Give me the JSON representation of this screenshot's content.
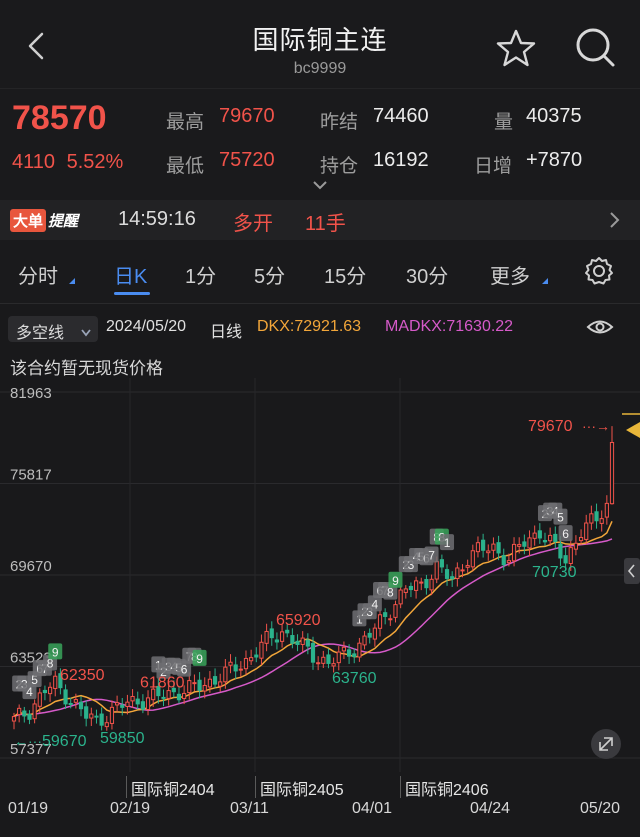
{
  "header": {
    "title": "国际铜主连",
    "code": "bc9999"
  },
  "quote": {
    "price": "78570",
    "change": "4110",
    "change_pct": "5.52%",
    "high_label": "最高",
    "high": "79670",
    "low_label": "最低",
    "low": "75720",
    "prev_settle_label": "昨结",
    "prev_settle": "74460",
    "volume_label": "量",
    "volume": "40375",
    "open_interest_label": "持仓",
    "open_interest": "16192",
    "daily_inc_label": "日增",
    "daily_inc": "+7870"
  },
  "alert": {
    "badge_a": "大单",
    "badge_b": "提醒",
    "time": "14:59:16",
    "action": "多开",
    "qty": "11手"
  },
  "tabs": {
    "intraday": "分时",
    "daily": "日K",
    "m1": "1分",
    "m5": "5分",
    "m15": "15分",
    "m30": "30分",
    "more": "更多"
  },
  "chart_head": {
    "indicator": "多空线",
    "date": "2024/05/20",
    "period": "日线",
    "dkx": "DKX:72921.63",
    "madkx": "MADKX:71630.22",
    "note": "该合约暂无现货价格"
  },
  "chart_data": {
    "type": "candlestick",
    "y_ticks": [
      "81963",
      "75817",
      "69670",
      "63523",
      "57377"
    ],
    "ylim": [
      57377,
      81963
    ],
    "x_ticks": [
      "01/19",
      "02/19",
      "03/11",
      "04/01",
      "04/24",
      "05/20"
    ],
    "contracts": [
      "国际铜2404",
      "国际铜2405",
      "国际铜2406"
    ],
    "annotations": [
      "79670",
      "65920",
      "62350",
      "61860",
      "59670",
      "59850",
      "63760",
      "70730"
    ],
    "tags": [
      {
        "t": "2",
        "c": "gray"
      },
      {
        "t": "3",
        "c": "gray"
      },
      {
        "t": "4",
        "c": "gray"
      },
      {
        "t": "5",
        "c": "gray"
      },
      {
        "t": "6",
        "c": "gray"
      },
      {
        "t": "7",
        "c": "gray"
      },
      {
        "t": "8",
        "c": "gray"
      },
      {
        "t": "9",
        "c": "green"
      },
      {
        "t": "1",
        "c": "gray"
      },
      {
        "t": "2",
        "c": "gray"
      },
      {
        "t": "3",
        "c": "gray"
      },
      {
        "t": "4",
        "c": "gray"
      },
      {
        "t": "5",
        "c": "gray"
      },
      {
        "t": "6",
        "c": "gray"
      },
      {
        "t": "7",
        "c": "gray"
      },
      {
        "t": "8",
        "c": "gray"
      },
      {
        "t": "9",
        "c": "green"
      },
      {
        "t": "1",
        "c": "gray"
      },
      {
        "t": "2",
        "c": "gray"
      },
      {
        "t": "3",
        "c": "gray"
      },
      {
        "t": "4",
        "c": "gray"
      },
      {
        "t": "6",
        "c": "gray"
      },
      {
        "t": "7",
        "c": "gray"
      },
      {
        "t": "8",
        "c": "gray"
      },
      {
        "t": "9",
        "c": "green"
      },
      {
        "t": "2",
        "c": "gray"
      },
      {
        "t": "3",
        "c": "gray"
      },
      {
        "t": "4",
        "c": "gray"
      },
      {
        "t": "5",
        "c": "gray"
      },
      {
        "t": "6",
        "c": "gray"
      },
      {
        "t": "7",
        "c": "gray"
      },
      {
        "t": "8",
        "c": "gray"
      },
      {
        "t": "8",
        "c": "green"
      },
      {
        "t": "1",
        "c": "gray"
      },
      {
        "t": "2",
        "c": "gray"
      },
      {
        "t": "3",
        "c": "gray"
      },
      {
        "t": "4",
        "c": "gray"
      },
      {
        "t": "5",
        "c": "gray"
      },
      {
        "t": "6",
        "c": "gray"
      }
    ],
    "colors": {
      "up": "#f1534a",
      "down": "#2bb38c",
      "dkx": "#f2a63a",
      "madkx": "#d65ac9"
    }
  }
}
